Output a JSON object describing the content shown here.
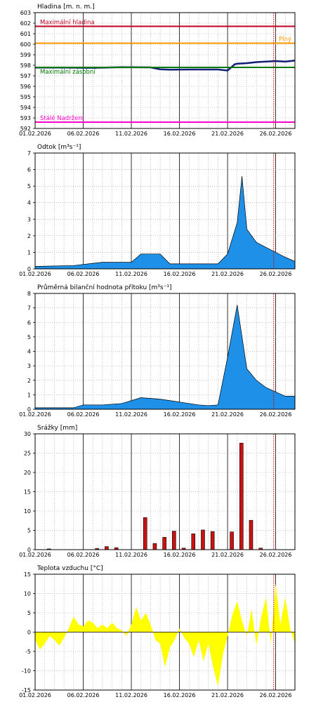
{
  "chart_data": [
    {
      "id": "hladina",
      "type": "line",
      "title": "Hladina [m. n. m.]",
      "ylim": [
        592,
        603
      ],
      "yticks": [
        592,
        593,
        594,
        595,
        596,
        597,
        598,
        599,
        600,
        601,
        602,
        603
      ],
      "x_start": "2026-02-01",
      "x_end": "2026-02-28",
      "x_tick_labels": [
        "01.02.2026",
        "06.02.2026",
        "11.02.2026",
        "16.02.2026",
        "21.02.2026",
        "26.02.2026"
      ],
      "today": "2026-02-26",
      "grid": true,
      "reference_lines": [
        {
          "label": "Maximální hladina",
          "value": 601.7,
          "color": "#c00020"
        },
        {
          "label": "Plný",
          "value": 600.1,
          "color": "#ff9900"
        },
        {
          "label": "Maximální zásobní",
          "value": 597.8,
          "color": "#007700"
        },
        {
          "label": "Stálé Nadržení",
          "value": 592.6,
          "color": "#ff00cc"
        }
      ],
      "series": [
        {
          "color": "#101e78",
          "x": [
            "2026-02-01",
            "2026-02-04",
            "2026-02-07",
            "2026-02-10",
            "2026-02-13",
            "2026-02-14",
            "2026-02-15",
            "2026-02-17",
            "2026-02-20",
            "2026-02-21",
            "2026-02-21T18:00",
            "2026-02-22",
            "2026-02-23",
            "2026-02-24",
            "2026-02-25",
            "2026-02-26",
            "2026-02-27",
            "2026-02-28"
          ],
          "values": [
            597.78,
            597.78,
            597.76,
            597.82,
            597.8,
            597.62,
            597.58,
            597.6,
            597.6,
            597.5,
            598.1,
            598.15,
            598.2,
            598.3,
            598.35,
            598.4,
            598.35,
            598.45
          ]
        }
      ]
    },
    {
      "id": "odtok",
      "type": "area",
      "title": "Odtok [m³s⁻¹]",
      "ylim": [
        0,
        7
      ],
      "yticks": [
        0,
        1,
        2,
        3,
        4,
        5,
        6,
        7
      ],
      "x_start": "2026-02-01",
      "x_end": "2026-02-28",
      "x_tick_labels": [
        "01.02.2026",
        "06.02.2026",
        "11.02.2026",
        "16.02.2026",
        "21.02.2026",
        "26.02.2026"
      ],
      "today": "2026-02-26",
      "grid": true,
      "series": [
        {
          "color": "#1e90e8",
          "x": [
            "2026-02-01",
            "2026-02-05",
            "2026-02-08",
            "2026-02-11",
            "2026-02-12",
            "2026-02-13",
            "2026-02-14",
            "2026-02-15",
            "2026-02-16",
            "2026-02-20",
            "2026-02-21",
            "2026-02-22",
            "2026-02-22T12:00",
            "2026-02-23",
            "2026-02-24",
            "2026-02-25",
            "2026-02-27",
            "2026-02-28"
          ],
          "values": [
            0.15,
            0.2,
            0.4,
            0.4,
            0.9,
            0.9,
            0.9,
            0.3,
            0.3,
            0.3,
            0.9,
            2.8,
            5.6,
            2.4,
            1.6,
            1.3,
            0.7,
            0.45
          ]
        }
      ]
    },
    {
      "id": "pritok",
      "type": "area",
      "title": "Průměrná bilanční hodnota přítoku [m³s⁻¹]",
      "ylim": [
        0,
        8
      ],
      "yticks": [
        0,
        1,
        2,
        3,
        4,
        5,
        6,
        7,
        8
      ],
      "x_start": "2026-02-01",
      "x_end": "2026-02-28",
      "x_tick_labels": [
        "01.02.2026",
        "06.02.2026",
        "11.02.2026",
        "16.02.2026",
        "21.02.2026",
        "26.02.2026"
      ],
      "today": "2026-02-26",
      "grid": true,
      "series": [
        {
          "color": "#1e90e8",
          "x": [
            "2026-02-01",
            "2026-02-05",
            "2026-02-06",
            "2026-02-08",
            "2026-02-10",
            "2026-02-12",
            "2026-02-13",
            "2026-02-14",
            "2026-02-15",
            "2026-02-16",
            "2026-02-17",
            "2026-02-18",
            "2026-02-19",
            "2026-02-20",
            "2026-02-21",
            "2026-02-22",
            "2026-02-23",
            "2026-02-24",
            "2026-02-25",
            "2026-02-26",
            "2026-02-27",
            "2026-02-28"
          ],
          "values": [
            0.1,
            0.1,
            0.3,
            0.3,
            0.4,
            0.8,
            0.75,
            0.7,
            0.6,
            0.5,
            0.4,
            0.3,
            0.25,
            0.3,
            3.6,
            7.2,
            2.8,
            2.0,
            1.5,
            1.2,
            0.9,
            0.9
          ]
        }
      ]
    },
    {
      "id": "srazky",
      "type": "bar",
      "title": "Srážky [mm]",
      "ylim": [
        0,
        30
      ],
      "yticks": [
        0,
        5,
        10,
        15,
        20,
        25,
        30
      ],
      "x_start": "2026-02-01",
      "x_end": "2026-02-28",
      "x_tick_labels": [
        "01.02.2026",
        "06.02.2026",
        "11.02.2026",
        "16.02.2026",
        "21.02.2026",
        "26.02.2026"
      ],
      "today": "2026-02-26",
      "grid": true,
      "series": [
        {
          "color": "#cc1111",
          "x": [
            "2026-02-02",
            "2026-02-07",
            "2026-02-08",
            "2026-02-09",
            "2026-02-12",
            "2026-02-13",
            "2026-02-14",
            "2026-02-15",
            "2026-02-16",
            "2026-02-17",
            "2026-02-18",
            "2026-02-19",
            "2026-02-21",
            "2026-02-22",
            "2026-02-23",
            "2026-02-24"
          ],
          "values": [
            0.2,
            0.3,
            0.8,
            0.5,
            8.3,
            1.6,
            3.2,
            4.8,
            0.4,
            4.1,
            5.1,
            4.7,
            4.6,
            27.6,
            7.6,
            0.4
          ]
        }
      ]
    },
    {
      "id": "teplota",
      "type": "area",
      "title": "Teplota vzduchu [°C]",
      "ylim": [
        -15,
        15
      ],
      "yticks": [
        -15,
        -10,
        -5,
        0,
        5,
        10,
        15
      ],
      "x_start": "2026-02-01",
      "x_end": "2026-02-28",
      "x_tick_labels": [
        "01.02.2026",
        "06.02.2026",
        "11.02.2026",
        "16.02.2026",
        "21.02.2026",
        "26.02.2026"
      ],
      "today": "2026-02-26",
      "grid": true,
      "series": [
        {
          "color": "#ffff00",
          "x": [
            "2026-02-01",
            "2026-02-01T12:00",
            "2026-02-02",
            "2026-02-02T12:00",
            "2026-02-03",
            "2026-02-03T12:00",
            "2026-02-04",
            "2026-02-04T12:00",
            "2026-02-05",
            "2026-02-05T12:00",
            "2026-02-06",
            "2026-02-06T12:00",
            "2026-02-07",
            "2026-02-07T12:00",
            "2026-02-08",
            "2026-02-08T12:00",
            "2026-02-09",
            "2026-02-09T12:00",
            "2026-02-10",
            "2026-02-10T12:00",
            "2026-02-11",
            "2026-02-11T12:00",
            "2026-02-12",
            "2026-02-12T12:00",
            "2026-02-13",
            "2026-02-13T12:00",
            "2026-02-14",
            "2026-02-14T12:00",
            "2026-02-15",
            "2026-02-15T12:00",
            "2026-02-16",
            "2026-02-16T12:00",
            "2026-02-17",
            "2026-02-17T12:00",
            "2026-02-18",
            "2026-02-18T12:00",
            "2026-02-19",
            "2026-02-19T12:00",
            "2026-02-20",
            "2026-02-20T12:00",
            "2026-02-21",
            "2026-02-21T12:00",
            "2026-02-22",
            "2026-02-22T12:00",
            "2026-02-23",
            "2026-02-23T12:00",
            "2026-02-24",
            "2026-02-24T12:00",
            "2026-02-25",
            "2026-02-25T12:00",
            "2026-02-26",
            "2026-02-26T12:00",
            "2026-02-27",
            "2026-02-27T12:00",
            "2026-02-28"
          ],
          "values": [
            -2,
            -4.5,
            -3,
            -1,
            -2,
            -3.5,
            -1.5,
            1,
            4,
            2,
            1.5,
            3,
            2.5,
            1,
            2,
            1,
            2.5,
            1,
            0.5,
            -1,
            2,
            6.5,
            3,
            5,
            2,
            -2,
            -3,
            -9,
            -4,
            -2,
            1,
            -1.5,
            -3,
            -6.5,
            -2,
            -7.5,
            -3,
            -9,
            -14,
            -6,
            -1,
            4.5,
            8,
            3,
            -1,
            6,
            -3.5,
            4,
            9,
            -3,
            12.5,
            2,
            9,
            1,
            -3
          ]
        }
      ]
    }
  ]
}
